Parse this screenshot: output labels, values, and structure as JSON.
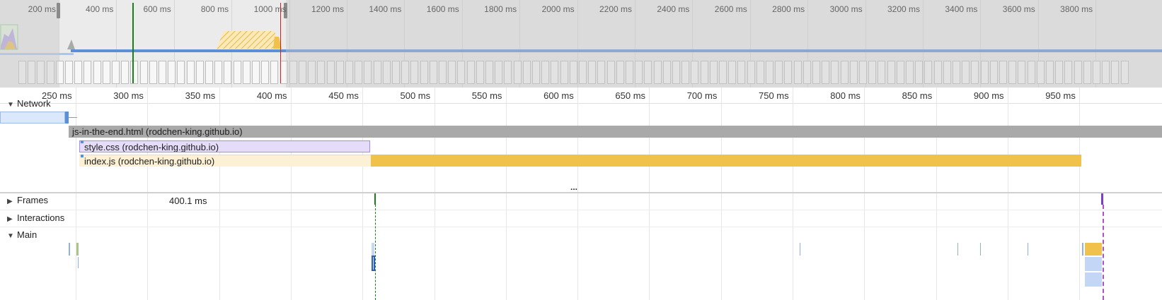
{
  "overview": {
    "ticks": [
      "200 ms",
      "400 ms",
      "600 ms",
      "800 ms",
      "1000 ms",
      "1200 ms",
      "1400 ms",
      "1600 ms",
      "1800 ms",
      "2000 ms",
      "2200 ms",
      "2400 ms",
      "2600 ms",
      "2800 ms",
      "3000 ms",
      "3200 ms",
      "3400 ms",
      "3600 ms",
      "3800 ms"
    ]
  },
  "ruler": {
    "ticks": [
      "250 ms",
      "300 ms",
      "350 ms",
      "400 ms",
      "450 ms",
      "500 ms",
      "550 ms",
      "600 ms",
      "650 ms",
      "700 ms",
      "750 ms",
      "800 ms",
      "850 ms",
      "900 ms",
      "950 ms"
    ]
  },
  "network": {
    "label": "Network",
    "requests": [
      {
        "name": "js-in-the-end.html (rodchen-king.github.io)"
      },
      {
        "name": "style.css (rodchen-king.github.io)"
      },
      {
        "name": "index.js (rodchen-king.github.io)"
      }
    ]
  },
  "frames": {
    "label": "Frames",
    "duration": "400.1 ms"
  },
  "interactions": {
    "label": "Interactions"
  },
  "main": {
    "label": "Main"
  },
  "splitter": "...",
  "colors": {
    "document": "#a9a9a9",
    "css": "#d9d2f5",
    "script_light": "#fdf1d5",
    "script": "#f0c14b",
    "load_marker": "#1a7f1a",
    "paint_marker": "#d02020",
    "overview_line": "#5b8fd8"
  }
}
